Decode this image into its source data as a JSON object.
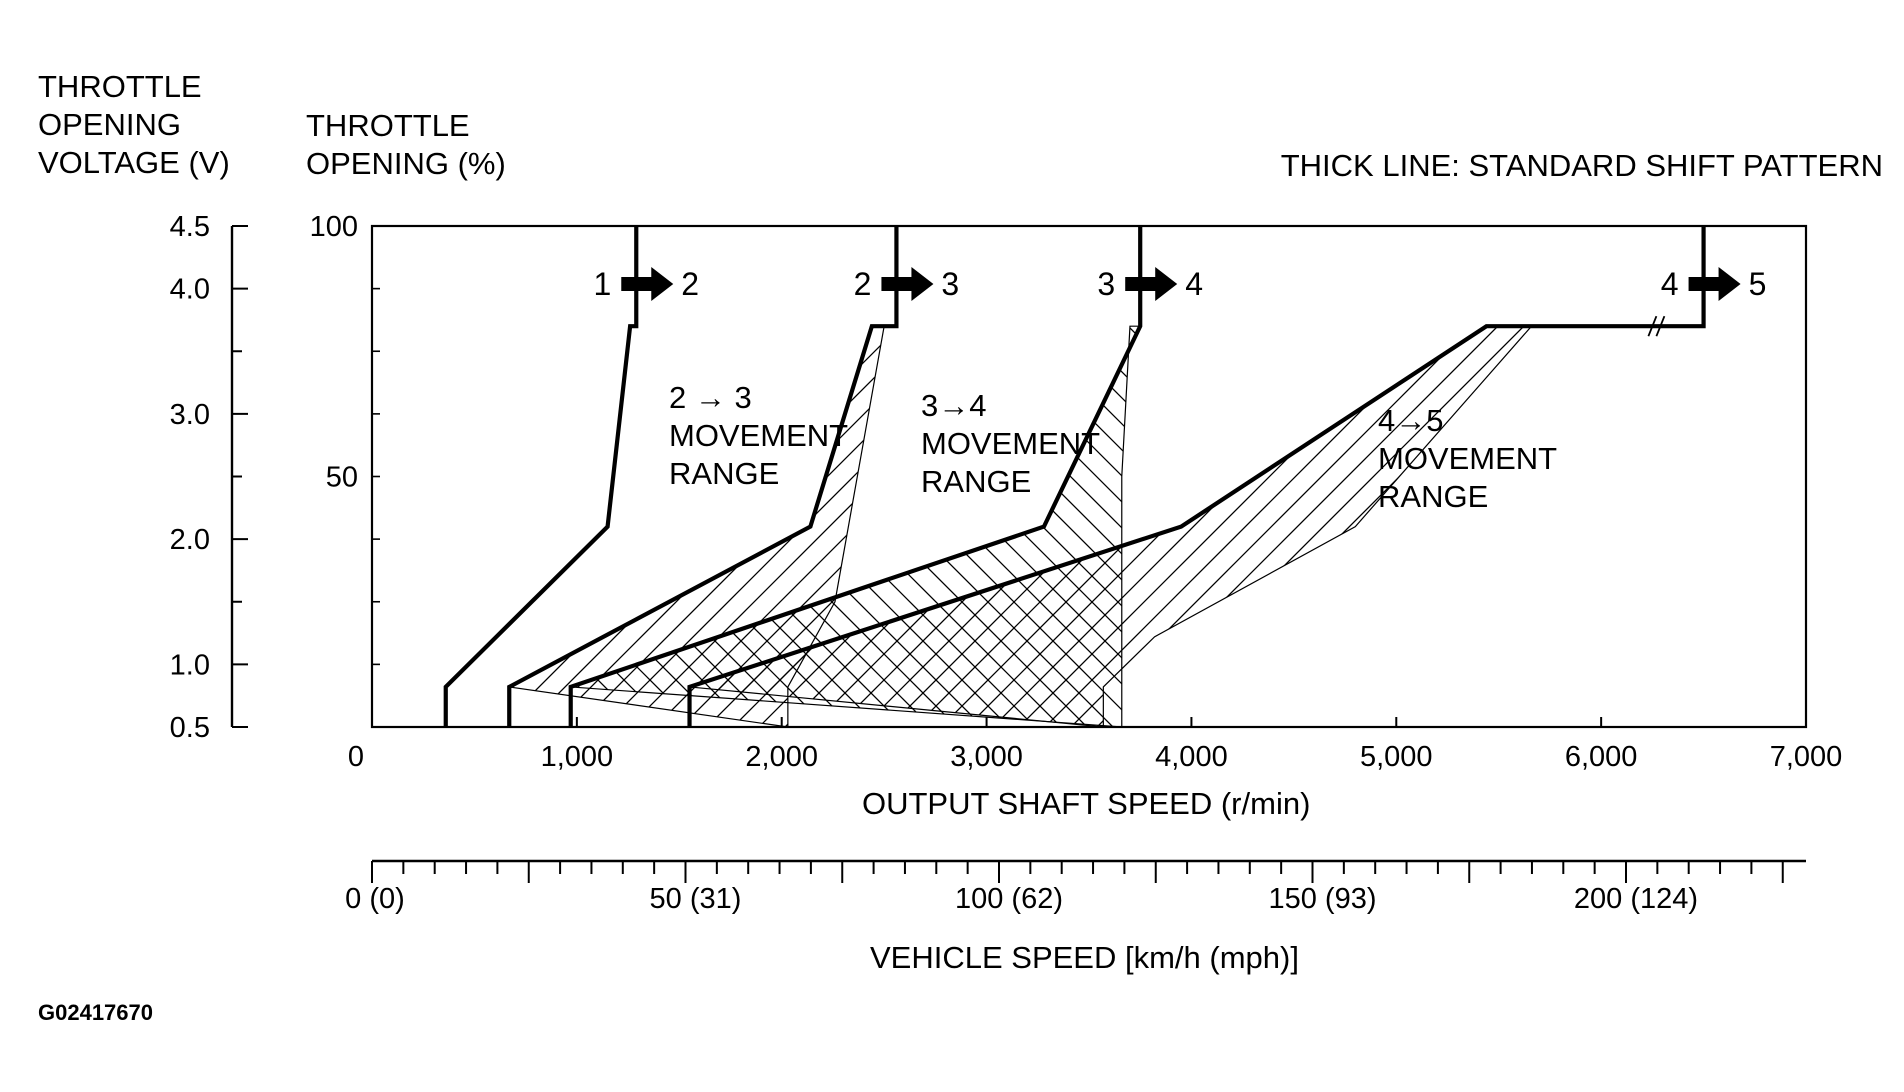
{
  "chart_data": {
    "type": "line",
    "title": "",
    "note": "THICK LINE: STANDARD SHIFT PATTERN",
    "xlabel": "OUTPUT SHAFT SPEED (r/min)",
    "ylabel": "THROTTLE OPENING (%)",
    "xlim": [
      0,
      7000
    ],
    "ylim": [
      0,
      100
    ],
    "x_ticks": [
      "0",
      "1,000",
      "2,000",
      "3,000",
      "4,000",
      "5,000",
      "6,000",
      "7,000"
    ],
    "y_ticks": [
      "0",
      "50",
      "100"
    ],
    "left_axis": {
      "label_lines": [
        "THROTTLE",
        "OPENING",
        "VOLTAGE (V)"
      ],
      "ticks": [
        "0.5",
        "1.0",
        "2.0",
        "3.0",
        "4.0",
        "4.5"
      ]
    },
    "main_axis_label_lines": [
      "THROTTLE",
      "OPENING (%)"
    ],
    "secondary_x_axis": {
      "label": "VEHICLE SPEED [km/h (mph)]",
      "ticks": [
        "0 (0)",
        "50 (31)",
        "100 (62)",
        "150 (93)",
        "200 (124)"
      ]
    },
    "series": [
      {
        "name": "1 → 2",
        "from": "1",
        "to": "2",
        "x": [
          360,
          360,
          1150,
          1260,
          1260,
          1290,
          1290
        ],
        "y": [
          0,
          8,
          40,
          80,
          80,
          80,
          100
        ]
      },
      {
        "name": "2 → 3",
        "from": "2",
        "to": "3",
        "x": [
          670,
          670,
          2140,
          2440,
          2560,
          2560
        ],
        "y": [
          0,
          8,
          40,
          80,
          80,
          100
        ]
      },
      {
        "name": "3 → 4",
        "from": "3",
        "to": "4",
        "x": [
          970,
          970,
          3280,
          3750,
          3750
        ],
        "y": [
          0,
          8,
          40,
          80,
          100
        ]
      },
      {
        "name": "4 → 5",
        "from": "4",
        "to": "5",
        "x": [
          1550,
          1550,
          3950,
          5440,
          6500,
          6500
        ],
        "y": [
          0,
          8,
          40,
          80,
          80,
          100
        ]
      }
    ],
    "movement_ranges": [
      {
        "label_lines": [
          "2 → 3",
          "MOVEMENT",
          "RANGE"
        ],
        "x": [
          670,
          2140,
          2440,
          2500,
          2260,
          2030,
          2030
        ],
        "y": [
          8,
          40,
          80,
          80,
          25,
          8,
          0
        ]
      },
      {
        "label_lines": [
          "3→4",
          "MOVEMENT",
          "RANGE"
        ],
        "x": [
          970,
          3280,
          3750,
          3700,
          3660,
          3660
        ],
        "y": [
          8,
          40,
          80,
          80,
          50,
          0
        ]
      },
      {
        "label_lines": [
          "4→5",
          "MOVEMENT",
          "RANGE"
        ],
        "x": [
          1550,
          3950,
          5440,
          5660,
          4800,
          3820,
          3570,
          3570
        ],
        "y": [
          8,
          40,
          80,
          80,
          40,
          18,
          8,
          0
        ]
      }
    ]
  },
  "figure_id": "G02417670"
}
